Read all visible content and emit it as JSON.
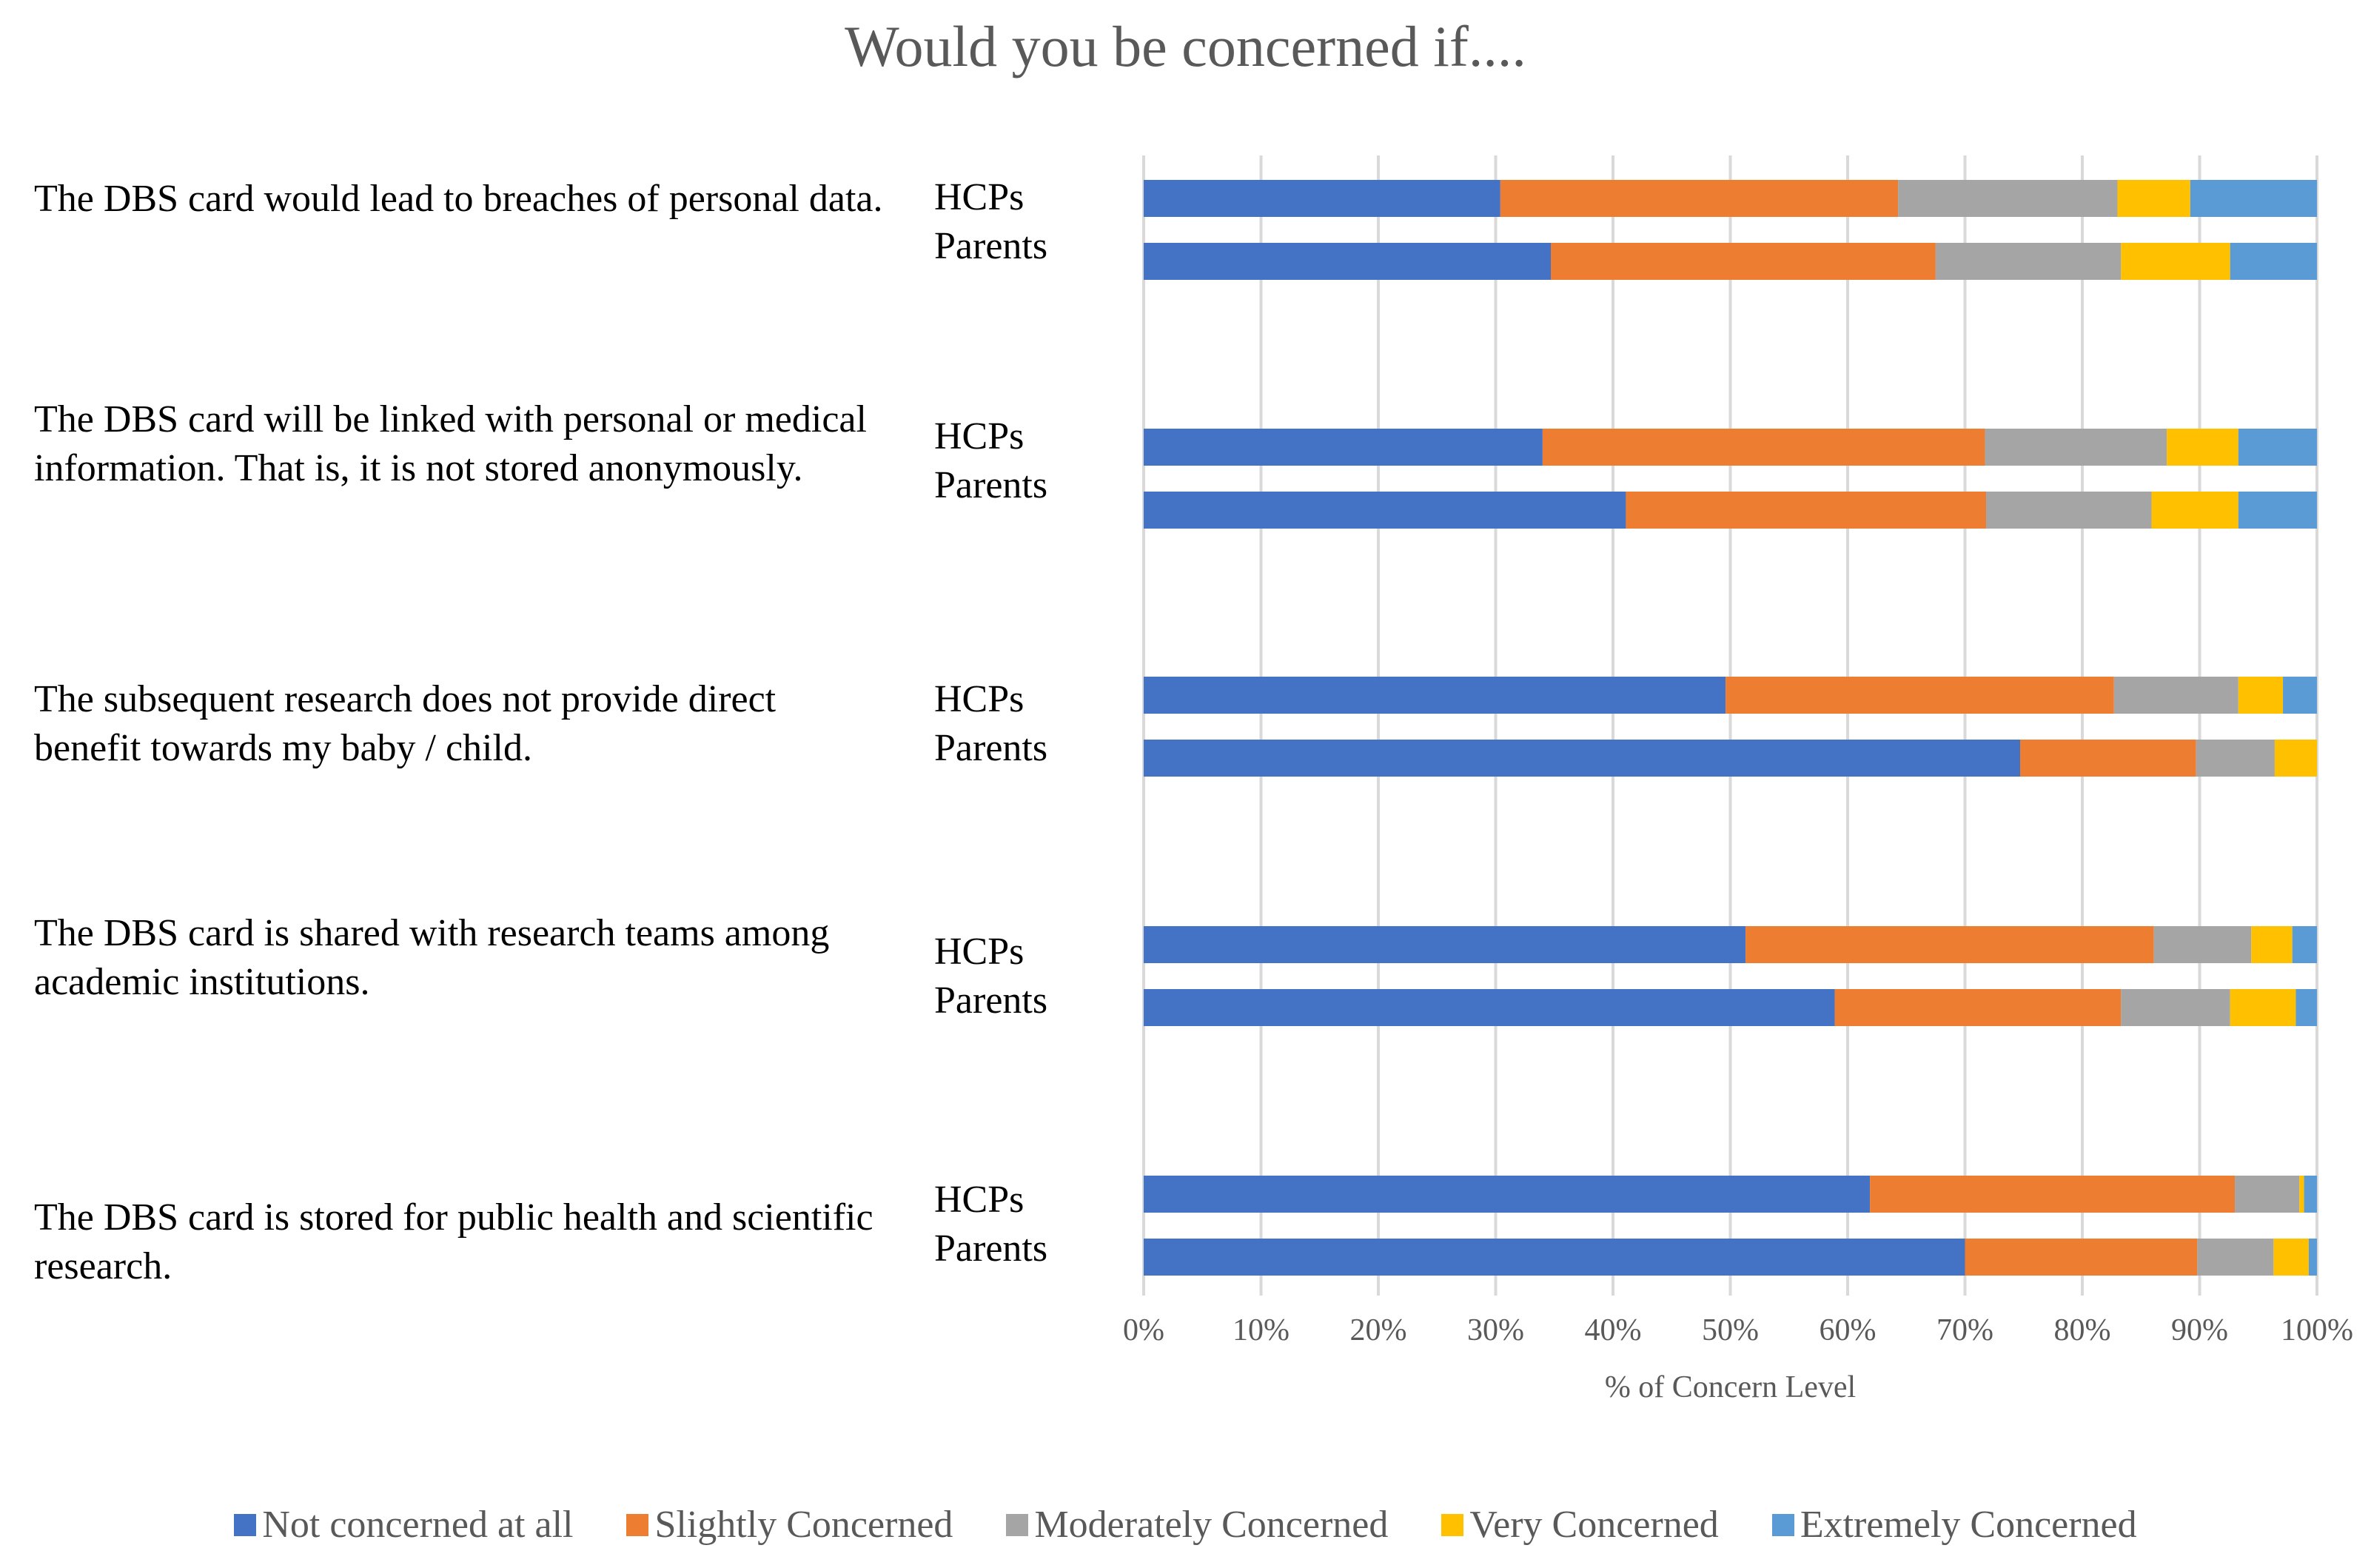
{
  "chart_data": {
    "type": "bar",
    "orientation": "horizontal",
    "stacked": true,
    "title": "Would you be concerned if....",
    "xlabel": "% of Concern Level",
    "ylabel": "",
    "xlim": [
      0,
      100
    ],
    "xticks": [
      "0%",
      "10%",
      "20%",
      "30%",
      "40%",
      "50%",
      "60%",
      "70%",
      "80%",
      "90%",
      "100%"
    ],
    "grid": true,
    "legend_position": "bottom",
    "series": [
      {
        "name": "Not concerned at all",
        "color": "#4472C4"
      },
      {
        "name": "Slightly Concerned",
        "color": "#ED7D31"
      },
      {
        "name": "Moderately Concerned",
        "color": "#A5A5A5"
      },
      {
        "name": "Very Concerned",
        "color": "#FFC000"
      },
      {
        "name": "Extremely Concerned",
        "color": "#5B9BD5"
      }
    ],
    "groups": [
      {
        "question": "The DBS card would lead to breaches of personal data.",
        "bars": [
          {
            "label": "HCPs",
            "values": [
              30.4,
              33.9,
              18.7,
              6.2,
              10.8
            ]
          },
          {
            "label": "Parents",
            "values": [
              34.7,
              32.8,
              15.8,
              9.3,
              7.4
            ]
          }
        ]
      },
      {
        "question": "The DBS card will be linked with personal or medical information. That is, it is not stored anonymously.",
        "bars": [
          {
            "label": "HCPs",
            "values": [
              34.0,
              37.7,
              15.5,
              6.1,
              6.7
            ]
          },
          {
            "label": "Parents",
            "values": [
              41.1,
              30.7,
              14.1,
              7.4,
              6.7
            ]
          }
        ]
      },
      {
        "question": "The subsequent research does not provide direct benefit towards my baby / child.",
        "bars": [
          {
            "label": "HCPs",
            "values": [
              49.6,
              33.1,
              10.6,
              3.8,
              2.9
            ]
          },
          {
            "label": "Parents",
            "values": [
              74.7,
              15.0,
              6.7,
              3.6,
              0
            ]
          }
        ]
      },
      {
        "question": "The DBS card is shared with research teams among academic institutions.",
        "bars": [
          {
            "label": "HCPs",
            "values": [
              51.3,
              34.8,
              8.3,
              3.5,
              2.1
            ]
          },
          {
            "label": "Parents",
            "values": [
              58.9,
              24.4,
              9.3,
              5.6,
              1.8
            ]
          }
        ]
      },
      {
        "question": "The DBS card is stored for public health and scientific research.",
        "bars": [
          {
            "label": "HCPs",
            "values": [
              61.9,
              31.1,
              5.5,
              0.4,
              1.1
            ]
          },
          {
            "label": "Parents",
            "values": [
              70.0,
              19.8,
              6.5,
              3.0,
              0.7
            ]
          }
        ]
      }
    ]
  }
}
